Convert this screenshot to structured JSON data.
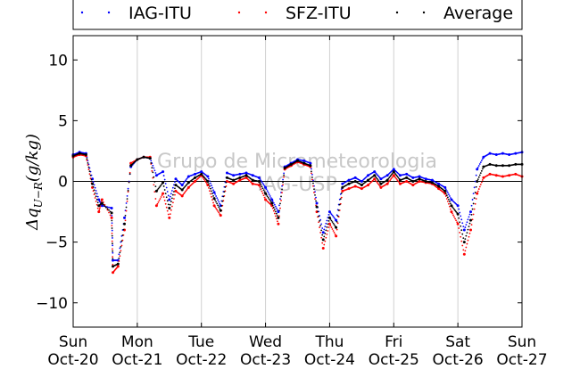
{
  "chart_data": {
    "type": "scatter",
    "ylabel": "Δq_{U−R}(g/kg)",
    "ylabel_main": "Δq",
    "ylabel_sub": "U−R",
    "ylabel_unit": "(g/kg)",
    "ylim": [
      -12,
      12
    ],
    "yticks": [
      -10,
      -5,
      0,
      5,
      10
    ],
    "ytick_labels": [
      "−10",
      "−5",
      "0",
      "5",
      "10"
    ],
    "xlim": [
      0,
      7
    ],
    "xticks": [
      0,
      1,
      2,
      3,
      4,
      5,
      6,
      7
    ],
    "xtick_labels": [
      [
        "Sun",
        "Oct-20"
      ],
      [
        "Mon",
        "Oct-21"
      ],
      [
        "Tue",
        "Oct-22"
      ],
      [
        "Wed",
        "Oct-23"
      ],
      [
        "Thu",
        "Oct-24"
      ],
      [
        "Fri",
        "Oct-25"
      ],
      [
        "Sat",
        "Oct-26"
      ],
      [
        "Sun",
        "Oct-27"
      ]
    ],
    "grid": "vertical",
    "zero_line": true,
    "legend_position": "top, above plot",
    "watermark": [
      "Grupo de Micrometeorologia",
      "IAG-USP"
    ],
    "series": [
      {
        "name": "IAG-ITU",
        "color": "#0000ff",
        "x": [
          0.0,
          0.1,
          0.2,
          0.3,
          0.4,
          0.45,
          0.6,
          0.62,
          0.7,
          0.8,
          0.9,
          1.0,
          1.1,
          1.2,
          1.3,
          1.4,
          1.5,
          1.6,
          1.7,
          1.8,
          1.9,
          2.0,
          2.1,
          2.2,
          2.3,
          2.4,
          2.5,
          2.6,
          2.7,
          2.8,
          2.9,
          3.0,
          3.1,
          3.2,
          3.3,
          3.4,
          3.5,
          3.6,
          3.7,
          3.8,
          3.9,
          4.0,
          4.1,
          4.2,
          4.3,
          4.4,
          4.5,
          4.6,
          4.7,
          4.8,
          4.9,
          5.0,
          5.1,
          5.2,
          5.3,
          5.4,
          5.5,
          5.6,
          5.7,
          5.8,
          5.9,
          6.0,
          6.1,
          6.2,
          6.3,
          6.4,
          6.5,
          6.6,
          6.7,
          6.8,
          6.9,
          7.0
        ],
        "y": [
          2.2,
          2.4,
          2.3,
          0.2,
          -1.5,
          -2.0,
          -2.2,
          -6.5,
          -6.5,
          -3.0,
          1.2,
          1.8,
          2.0,
          1.9,
          0.5,
          0.8,
          -1.5,
          0.2,
          -0.3,
          0.4,
          0.6,
          0.8,
          0.4,
          -0.9,
          -2.0,
          0.7,
          0.5,
          0.6,
          0.7,
          0.5,
          0.3,
          -0.5,
          -1.5,
          -2.5,
          1.2,
          1.5,
          1.8,
          1.7,
          1.5,
          -1.8,
          -4.2,
          -2.5,
          -3.2,
          -0.2,
          0.1,
          0.3,
          0.0,
          0.5,
          0.8,
          0.2,
          0.5,
          1.0,
          0.5,
          0.6,
          0.3,
          0.4,
          0.2,
          0.1,
          -0.2,
          -0.5,
          -1.5,
          -2.0,
          -4.0,
          -2.5,
          1.0,
          2.0,
          2.3,
          2.2,
          2.3,
          2.2,
          2.3,
          2.4
        ]
      },
      {
        "name": "SFZ-ITU",
        "color": "#ff0000",
        "x": [
          0.0,
          0.1,
          0.2,
          0.3,
          0.4,
          0.45,
          0.6,
          0.62,
          0.7,
          0.8,
          0.9,
          1.0,
          1.1,
          1.2,
          1.3,
          1.4,
          1.5,
          1.6,
          1.7,
          1.8,
          1.9,
          2.0,
          2.1,
          2.2,
          2.3,
          2.4,
          2.5,
          2.6,
          2.7,
          2.8,
          2.9,
          3.0,
          3.1,
          3.2,
          3.3,
          3.4,
          3.5,
          3.6,
          3.7,
          3.8,
          3.9,
          4.0,
          4.1,
          4.2,
          4.3,
          4.4,
          4.5,
          4.6,
          4.7,
          4.8,
          4.9,
          5.0,
          5.1,
          5.2,
          5.3,
          5.4,
          5.5,
          5.6,
          5.7,
          5.8,
          5.9,
          6.0,
          6.1,
          6.2,
          6.3,
          6.4,
          6.5,
          6.6,
          6.7,
          6.8,
          6.9,
          7.0
        ],
        "y": [
          2.0,
          2.2,
          2.1,
          -0.5,
          -2.5,
          -1.5,
          -3.0,
          -7.5,
          -7.0,
          -4.0,
          1.5,
          1.8,
          2.0,
          2.0,
          -2.0,
          -1.0,
          -3.0,
          -0.8,
          -1.2,
          -0.5,
          0.0,
          0.5,
          -0.3,
          -2.0,
          -2.8,
          0.0,
          -0.2,
          0.1,
          0.3,
          -0.2,
          -0.3,
          -1.5,
          -2.0,
          -3.5,
          1.0,
          1.3,
          1.6,
          1.4,
          1.2,
          -2.5,
          -5.5,
          -3.5,
          -4.5,
          -0.8,
          -0.6,
          -0.4,
          -0.6,
          -0.3,
          0.2,
          -0.5,
          -0.2,
          0.5,
          -0.2,
          0.0,
          -0.3,
          0.0,
          -0.1,
          -0.2,
          -0.6,
          -1.0,
          -2.5,
          -3.5,
          -6.0,
          -4.0,
          -1.0,
          0.3,
          0.6,
          0.5,
          0.4,
          0.5,
          0.6,
          0.4
        ]
      },
      {
        "name": "Average",
        "color": "#000000",
        "x": [
          0.0,
          0.1,
          0.2,
          0.3,
          0.4,
          0.45,
          0.6,
          0.62,
          0.7,
          0.8,
          0.9,
          1.0,
          1.1,
          1.2,
          1.3,
          1.4,
          1.5,
          1.6,
          1.7,
          1.8,
          1.9,
          2.0,
          2.1,
          2.2,
          2.3,
          2.4,
          2.5,
          2.6,
          2.7,
          2.8,
          2.9,
          3.0,
          3.1,
          3.2,
          3.3,
          3.4,
          3.5,
          3.6,
          3.7,
          3.8,
          3.9,
          4.0,
          4.1,
          4.2,
          4.3,
          4.4,
          4.5,
          4.6,
          4.7,
          4.8,
          4.9,
          5.0,
          5.1,
          5.2,
          5.3,
          5.4,
          5.5,
          5.6,
          5.7,
          5.8,
          5.9,
          6.0,
          6.1,
          6.2,
          6.3,
          6.4,
          6.5,
          6.6,
          6.7,
          6.8,
          6.9,
          7.0
        ],
        "y": [
          2.1,
          2.3,
          2.2,
          -0.2,
          -2.0,
          -1.8,
          -2.6,
          -7.0,
          -6.8,
          -3.5,
          1.3,
          1.8,
          2.0,
          1.9,
          -0.8,
          -0.1,
          -2.2,
          -0.3,
          -0.7,
          -0.1,
          0.3,
          0.6,
          0.0,
          -1.4,
          -2.4,
          0.3,
          0.1,
          0.3,
          0.5,
          0.1,
          0.0,
          -1.0,
          -1.8,
          -3.0,
          1.1,
          1.4,
          1.7,
          1.5,
          1.3,
          -2.1,
          -4.8,
          -3.0,
          -3.8,
          -0.5,
          -0.2,
          0.0,
          -0.3,
          0.1,
          0.5,
          -0.2,
          0.1,
          0.8,
          0.1,
          0.3,
          0.0,
          0.2,
          0.0,
          -0.1,
          -0.4,
          -0.8,
          -2.0,
          -2.7,
          -5.0,
          -3.2,
          0.0,
          1.2,
          1.4,
          1.3,
          1.3,
          1.3,
          1.4,
          1.4
        ]
      }
    ]
  }
}
